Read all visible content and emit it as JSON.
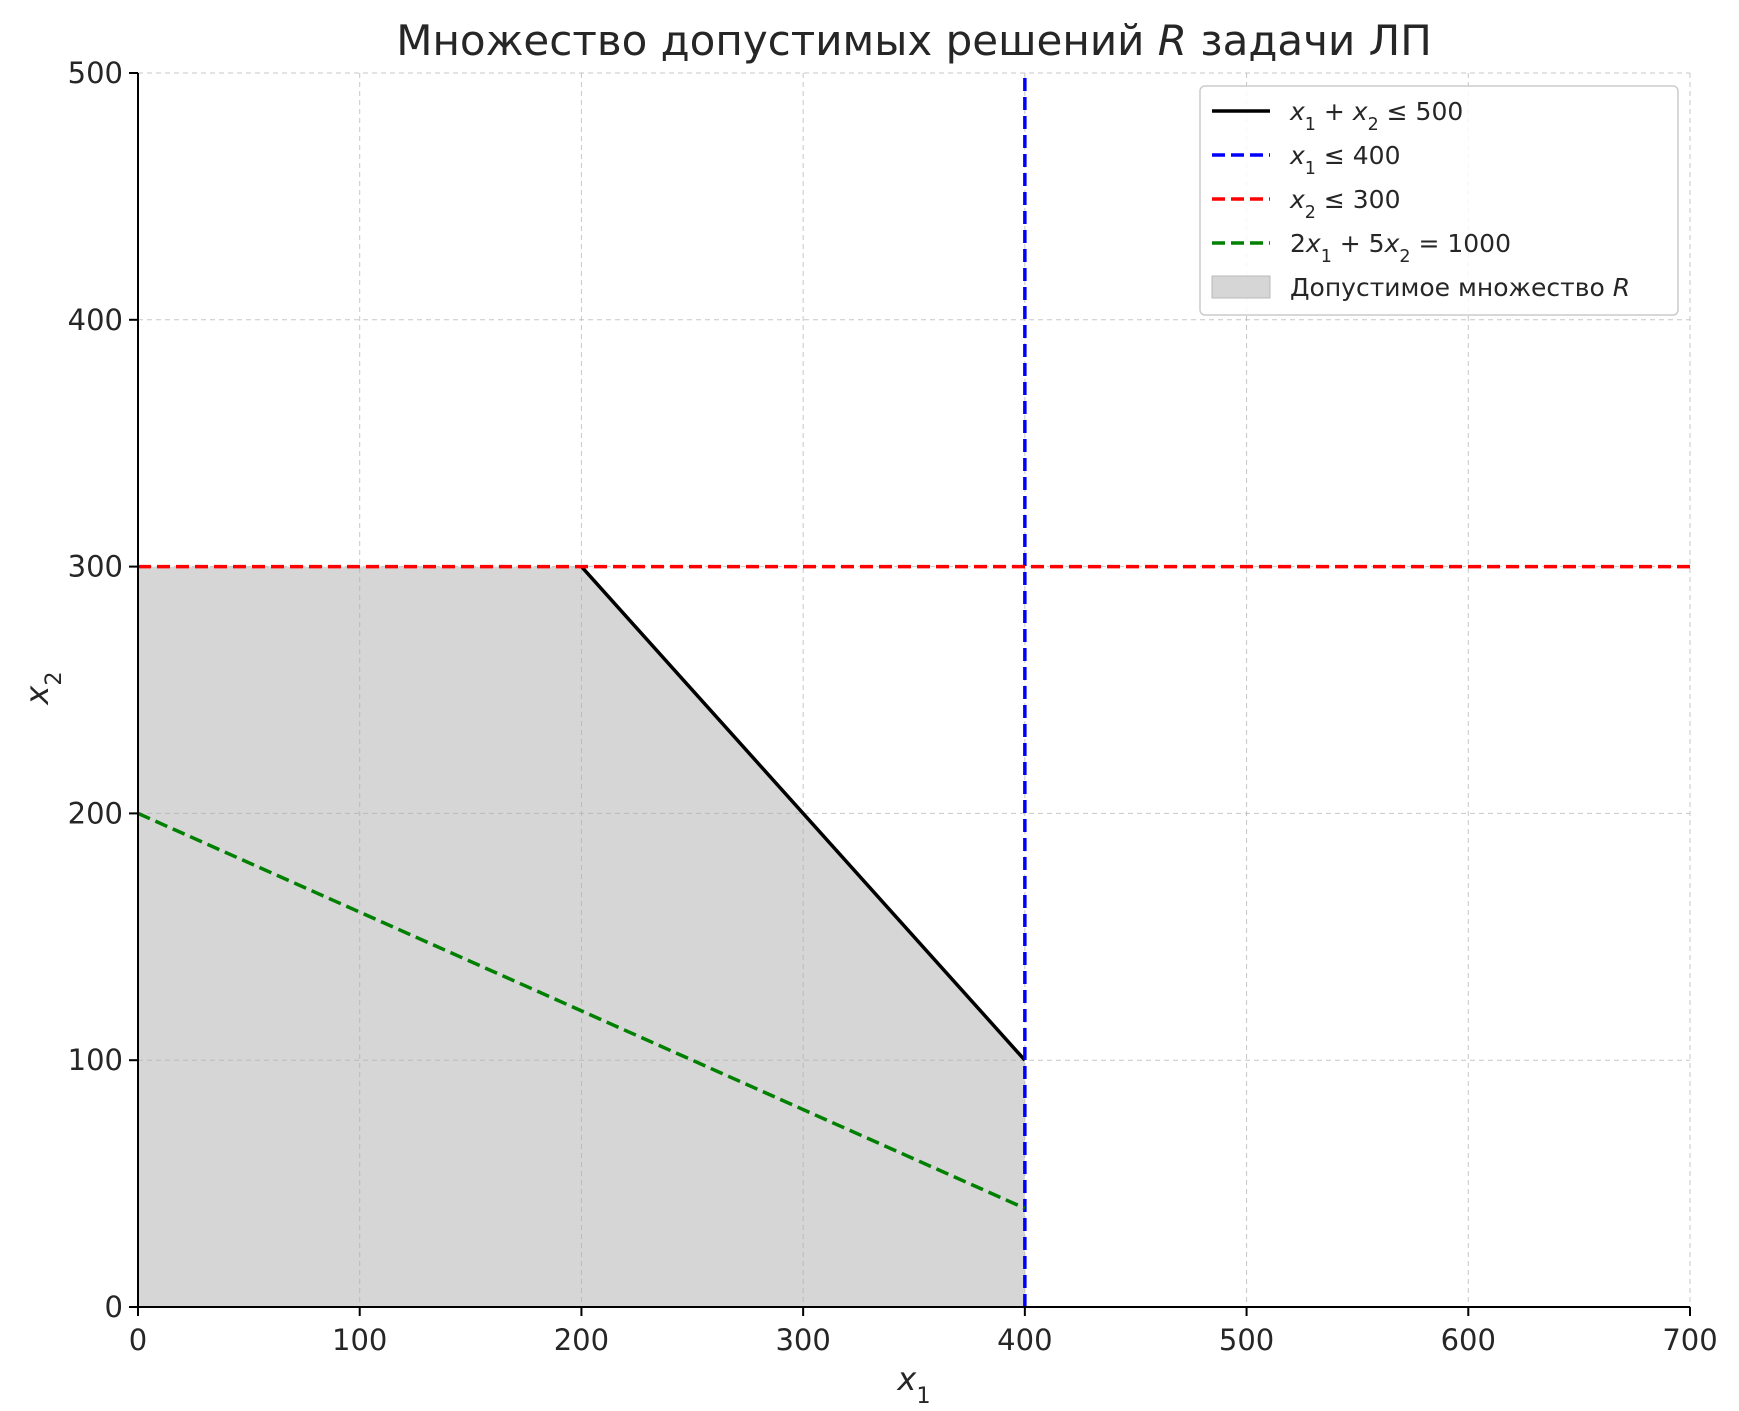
{
  "chart_data": {
    "type": "line",
    "title": "Множество допустимых решений R задачи ЛП",
    "title_parts": {
      "before": "Множество допустимых решений ",
      "var": "R",
      "after": " задачи ЛП"
    },
    "xlabel": {
      "base": "x",
      "sub": "1"
    },
    "ylabel": {
      "base": "x",
      "sub": "2"
    },
    "xlim": [
      0,
      700
    ],
    "ylim": [
      0,
      500
    ],
    "xticks": [
      0,
      100,
      200,
      300,
      400,
      500,
      600,
      700
    ],
    "yticks": [
      0,
      100,
      200,
      300,
      400,
      500
    ],
    "grid": true,
    "legend_position": "upper-right",
    "series": [
      {
        "name": "x1 + x2 ≤ 500",
        "legend_parts": [
          [
            "x",
            "1"
          ],
          [
            " + ",
            null
          ],
          [
            "x",
            "2"
          ],
          [
            " ≤ 500",
            null
          ]
        ],
        "color": "#000000",
        "style": "solid",
        "points": [
          [
            200,
            300
          ],
          [
            400,
            100
          ]
        ]
      },
      {
        "name": "x1 ≤ 400",
        "legend_parts": [
          [
            "x",
            "1"
          ],
          [
            " ≤ 400",
            null
          ]
        ],
        "color": "#0000ff",
        "style": "dashed",
        "points": [
          [
            400,
            0
          ],
          [
            400,
            500
          ]
        ]
      },
      {
        "name": "x2 ≤ 300",
        "legend_parts": [
          [
            "x",
            "2"
          ],
          [
            " ≤ 300",
            null
          ]
        ],
        "color": "#ff0000",
        "style": "dashed",
        "points": [
          [
            0,
            300
          ],
          [
            700,
            300
          ]
        ]
      },
      {
        "name": "2x1 + 5x2 = 1000",
        "legend_parts": [
          [
            "2",
            null
          ],
          [
            "x",
            "1"
          ],
          [
            " + 5",
            null
          ],
          [
            "x",
            "2"
          ],
          [
            " = 1000",
            null
          ]
        ],
        "color": "#008000",
        "style": "dashed",
        "points": [
          [
            0,
            200
          ],
          [
            400,
            40
          ]
        ]
      }
    ],
    "region": {
      "name": "Допустимое множество R",
      "legend_parts": [
        [
          "Допустимое множество ",
          null
        ],
        [
          "R",
          null
        ]
      ],
      "color": "#d6d6d6",
      "polygon": [
        [
          0,
          0
        ],
        [
          0,
          300
        ],
        [
          200,
          300
        ],
        [
          400,
          100
        ],
        [
          400,
          0
        ]
      ]
    }
  }
}
